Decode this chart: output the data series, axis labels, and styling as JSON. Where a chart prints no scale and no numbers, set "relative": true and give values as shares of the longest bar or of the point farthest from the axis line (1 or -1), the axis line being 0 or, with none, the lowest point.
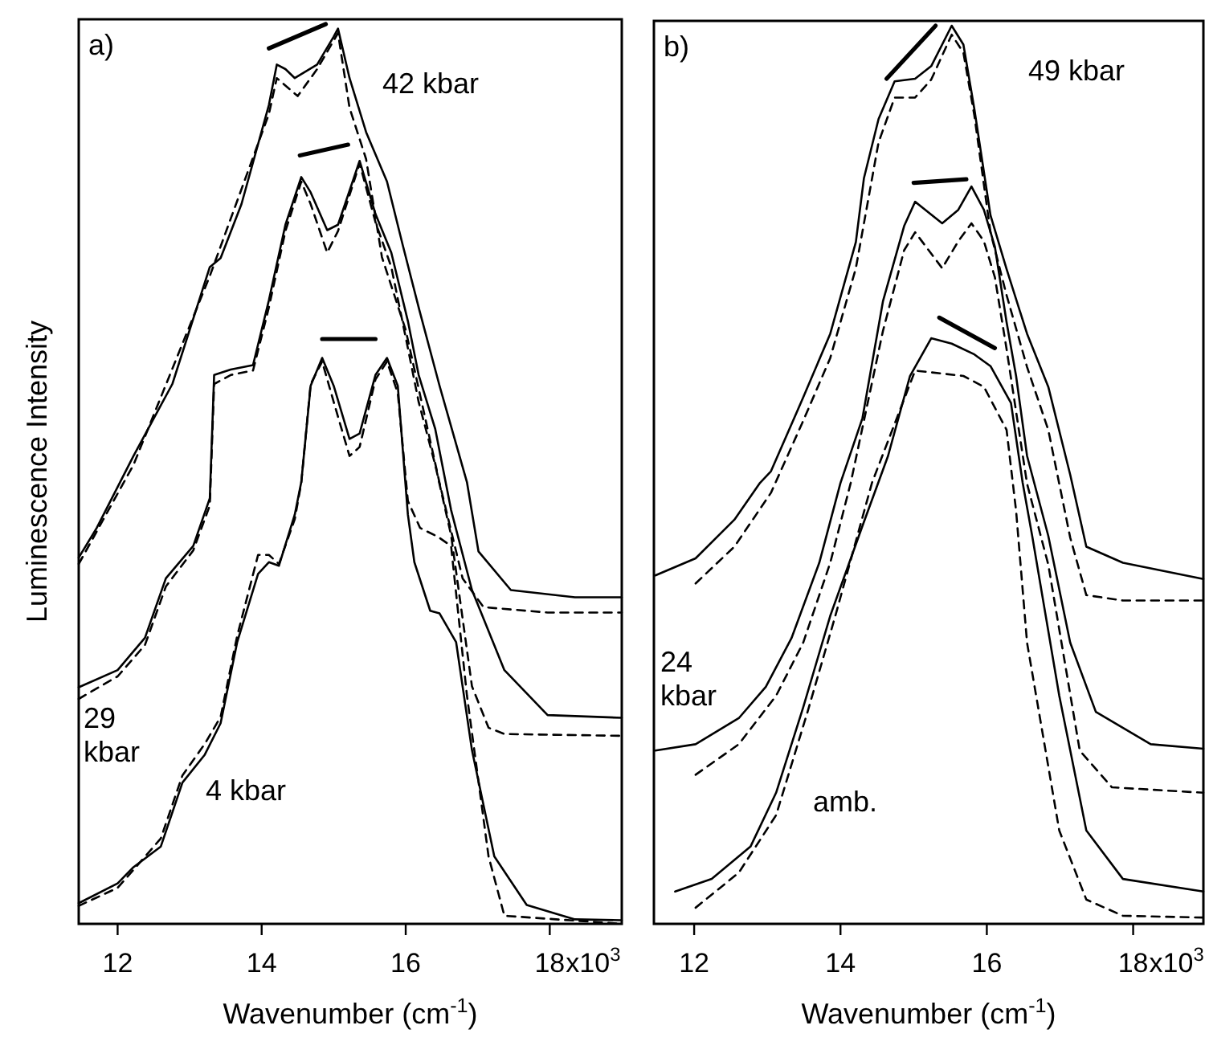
{
  "chart_data": [
    {
      "type": "line",
      "title": "a)",
      "xlabel": "Wavenumber (cm$^{-1}$)",
      "ylabel": "Luminescence Intensity",
      "relative": true,
      "tick_labels": "x",
      "xlim": [
        11.46,
        19.0
      ],
      "xticks": [
        12,
        14,
        16,
        18
      ],
      "annotations": [
        "x10$^{3}$"
      ],
      "series": [
        {
          "name": "42 kbar",
          "color": "#000000",
          "line_style": "solid",
          "x": [
            11.46,
            11.71,
            12.22,
            12.76,
            13.28,
            13.43,
            13.72,
            14.1,
            14.21,
            14.33,
            14.46,
            14.77,
            15.0,
            15.06,
            15.22,
            15.45,
            15.74,
            15.96,
            16.19,
            16.47,
            16.85,
            17.01,
            17.46,
            18.35,
            19.0
          ],
          "values": [
            0.407,
            0.44,
            0.52,
            0.6,
            0.73,
            0.74,
            0.8,
            0.91,
            0.955,
            0.95,
            0.94,
            0.955,
            0.986,
            0.995,
            0.94,
            0.88,
            0.825,
            0.754,
            0.682,
            0.598,
            0.491,
            0.414,
            0.371,
            0.363,
            0.363
          ]
        },
        {
          "color": "#000000",
          "line_style": "dashed",
          "x": [
            11.46,
            12.22,
            13.28,
            14.1,
            14.21,
            14.5,
            14.77,
            15.06,
            15.22,
            15.45,
            15.67,
            16.0,
            16.47,
            16.79,
            17.08,
            17.97,
            19.0
          ],
          "values": [
            0.4,
            0.51,
            0.72,
            0.9,
            0.94,
            0.92,
            0.95,
            0.99,
            0.907,
            0.85,
            0.741,
            0.66,
            0.49,
            0.384,
            0.352,
            0.346,
            0.346
          ]
        },
        {
          "name": "29 kbar",
          "color": "#000000",
          "line_style": "solid",
          "x": [
            11.46,
            12.0,
            12.38,
            12.67,
            13.05,
            13.28,
            13.34,
            13.57,
            13.88,
            14.1,
            14.33,
            14.55,
            14.68,
            14.91,
            15.06,
            15.36,
            15.58,
            15.8,
            16.03,
            16.18,
            16.41,
            16.63,
            16.92,
            17.37,
            17.97,
            19.0
          ],
          "values": [
            0.263,
            0.282,
            0.318,
            0.384,
            0.42,
            0.473,
            0.61,
            0.616,
            0.621,
            0.693,
            0.777,
            0.83,
            0.813,
            0.771,
            0.777,
            0.848,
            0.789,
            0.746,
            0.67,
            0.61,
            0.55,
            0.46,
            0.371,
            0.282,
            0.232,
            0.229
          ]
        },
        {
          "color": "#000000",
          "line_style": "dashed",
          "x": [
            11.46,
            12.0,
            12.38,
            12.67,
            13.05,
            13.28,
            13.34,
            13.57,
            13.88,
            14.1,
            14.33,
            14.55,
            14.68,
            14.91,
            15.06,
            15.36,
            15.58,
            15.8,
            16.03,
            16.18,
            16.41,
            16.63,
            16.92,
            17.15,
            17.37,
            19.0
          ],
          "values": [
            0.25,
            0.275,
            0.31,
            0.375,
            0.415,
            0.465,
            0.6,
            0.61,
            0.615,
            0.685,
            0.77,
            0.825,
            0.8,
            0.746,
            0.77,
            0.845,
            0.78,
            0.73,
            0.64,
            0.58,
            0.51,
            0.432,
            0.264,
            0.218,
            0.211,
            0.209
          ]
        },
        {
          "name": "4 kbar",
          "color": "#000000",
          "line_style": "solid",
          "x": [
            11.46,
            12.0,
            12.22,
            12.6,
            12.9,
            13.21,
            13.43,
            13.66,
            13.95,
            14.1,
            14.24,
            14.46,
            14.55,
            14.68,
            14.84,
            15.0,
            15.22,
            15.36,
            15.58,
            15.74,
            15.89,
            16.03,
            16.12,
            16.34,
            16.47,
            16.7,
            16.92,
            17.23,
            17.68,
            18.35,
            19.0
          ],
          "values": [
            0.023,
            0.045,
            0.063,
            0.086,
            0.157,
            0.188,
            0.223,
            0.313,
            0.389,
            0.402,
            0.398,
            0.455,
            0.491,
            0.598,
            0.629,
            0.598,
            0.539,
            0.545,
            0.61,
            0.629,
            0.598,
            0.455,
            0.402,
            0.348,
            0.345,
            0.313,
            0.193,
            0.075,
            0.021,
            0.005,
            0.004
          ]
        },
        {
          "color": "#000000",
          "line_style": "dashed",
          "x": [
            11.46,
            12.0,
            12.22,
            12.6,
            12.9,
            13.21,
            13.43,
            13.66,
            13.95,
            14.1,
            14.24,
            14.46,
            14.55,
            14.68,
            14.84,
            15.0,
            15.22,
            15.36,
            15.58,
            15.74,
            15.89,
            16.03,
            16.2,
            16.45,
            16.63,
            16.85,
            17.15,
            17.37,
            19.0
          ],
          "values": [
            0.02,
            0.04,
            0.06,
            0.095,
            0.165,
            0.2,
            0.23,
            0.32,
            0.41,
            0.41,
            0.4,
            0.45,
            0.49,
            0.6,
            0.625,
            0.58,
            0.52,
            0.53,
            0.605,
            0.625,
            0.59,
            0.47,
            0.44,
            0.43,
            0.42,
            0.254,
            0.075,
            0.009,
            0.0
          ]
        },
        {
          "color": "#000000",
          "line_style": "solid",
          "x": [
            14.1,
            14.89
          ],
          "values": [
            0.973,
            1.0
          ]
        },
        {
          "color": "#000000",
          "line_style": "solid",
          "x": [
            14.53,
            15.2
          ],
          "values": [
            0.854,
            0.866
          ]
        },
        {
          "color": "#000000",
          "line_style": "solid",
          "x": [
            14.84,
            15.58
          ],
          "values": [
            0.65,
            0.65
          ]
        }
      ]
    },
    {
      "type": "line",
      "title": "b)",
      "xlabel": "Wavenumber (cm$^{-1}$)",
      "relative": true,
      "tick_labels": "x",
      "xlim": [
        11.45,
        18.96
      ],
      "xticks": [
        12,
        14,
        16,
        18
      ],
      "annotations": [
        "x10$^{3}$"
      ],
      "series": [
        {
          "name": "49 kbar",
          "color": "#000000",
          "line_style": "solid",
          "x": [
            11.47,
            12.02,
            12.55,
            12.9,
            13.05,
            13.49,
            13.86,
            14.21,
            14.32,
            14.52,
            14.74,
            15.02,
            15.24,
            15.52,
            15.68,
            15.83,
            16.05,
            16.27,
            16.55,
            16.84,
            17.14,
            17.36,
            17.86,
            18.96
          ],
          "values": [
            0.388,
            0.407,
            0.45,
            0.491,
            0.504,
            0.586,
            0.657,
            0.759,
            0.83,
            0.896,
            0.938,
            0.941,
            0.955,
            1.0,
            0.979,
            0.907,
            0.789,
            0.729,
            0.657,
            0.598,
            0.5,
            0.42,
            0.402,
            0.384
          ]
        },
        {
          "color": "#000000",
          "line_style": "dashed",
          "x": [
            12.02,
            12.55,
            13.05,
            13.49,
            13.86,
            14.21,
            14.52,
            14.74,
            15.02,
            15.24,
            15.52,
            15.68,
            15.83,
            16.05,
            16.27,
            16.55,
            16.84,
            17.14,
            17.36,
            17.86,
            18.96
          ],
          "values": [
            0.379,
            0.42,
            0.48,
            0.56,
            0.63,
            0.73,
            0.87,
            0.92,
            0.92,
            0.94,
            0.99,
            0.97,
            0.9,
            0.77,
            0.7,
            0.62,
            0.55,
            0.43,
            0.366,
            0.36,
            0.36
          ]
        },
        {
          "name": "24 kbar",
          "color": "#000000",
          "line_style": "solid",
          "x": [
            11.47,
            12.02,
            12.61,
            12.98,
            13.33,
            13.71,
            14.0,
            14.3,
            14.58,
            14.87,
            15.02,
            15.39,
            15.61,
            15.79,
            15.96,
            16.11,
            16.27,
            16.4,
            16.55,
            16.84,
            17.14,
            17.49,
            18.24,
            18.96
          ],
          "values": [
            0.193,
            0.2,
            0.229,
            0.264,
            0.318,
            0.402,
            0.491,
            0.563,
            0.693,
            0.777,
            0.804,
            0.78,
            0.795,
            0.821,
            0.795,
            0.754,
            0.67,
            0.61,
            0.521,
            0.432,
            0.313,
            0.236,
            0.2,
            0.195
          ]
        },
        {
          "color": "#000000",
          "line_style": "dashed",
          "x": [
            12.02,
            12.61,
            13.12,
            13.49,
            13.86,
            14.14,
            14.58,
            14.87,
            15.02,
            15.39,
            15.61,
            15.79,
            15.96,
            16.11,
            16.27,
            16.55,
            16.84,
            17.27,
            17.71,
            18.96
          ],
          "values": [
            0.166,
            0.2,
            0.254,
            0.313,
            0.402,
            0.491,
            0.66,
            0.75,
            0.77,
            0.73,
            0.76,
            0.78,
            0.76,
            0.72,
            0.64,
            0.49,
            0.4,
            0.193,
            0.152,
            0.146
          ]
        },
        {
          "name": "amb.",
          "color": "#000000",
          "line_style": "solid",
          "x": [
            11.74,
            12.24,
            12.77,
            13.12,
            13.49,
            13.86,
            14.3,
            14.65,
            14.95,
            15.24,
            15.52,
            15.83,
            16.05,
            16.33,
            16.49,
            16.62,
            16.99,
            17.36,
            17.86,
            18.96
          ],
          "values": [
            0.036,
            0.05,
            0.086,
            0.146,
            0.241,
            0.343,
            0.443,
            0.521,
            0.61,
            0.652,
            0.646,
            0.634,
            0.621,
            0.58,
            0.491,
            0.432,
            0.254,
            0.104,
            0.05,
            0.036
          ]
        },
        {
          "color": "#000000",
          "line_style": "dashed",
          "x": [
            12.02,
            12.61,
            13.12,
            13.55,
            13.93,
            14.43,
            15.02,
            15.68,
            15.96,
            16.27,
            16.4,
            16.55,
            16.99,
            17.36,
            17.86,
            18.96
          ],
          "values": [
            0.018,
            0.057,
            0.121,
            0.236,
            0.343,
            0.491,
            0.616,
            0.61,
            0.598,
            0.55,
            0.46,
            0.313,
            0.104,
            0.027,
            0.009,
            0.007
          ]
        },
        {
          "color": "#000000",
          "line_style": "solid",
          "x": [
            14.63,
            15.3
          ],
          "values": [
            0.941,
            1.0
          ]
        },
        {
          "color": "#000000",
          "line_style": "solid",
          "x": [
            15.0,
            15.72
          ],
          "values": [
            0.825,
            0.829
          ]
        },
        {
          "color": "#000000",
          "line_style": "solid",
          "x": [
            15.35,
            16.11
          ],
          "values": [
            0.675,
            0.641
          ]
        }
      ]
    }
  ]
}
